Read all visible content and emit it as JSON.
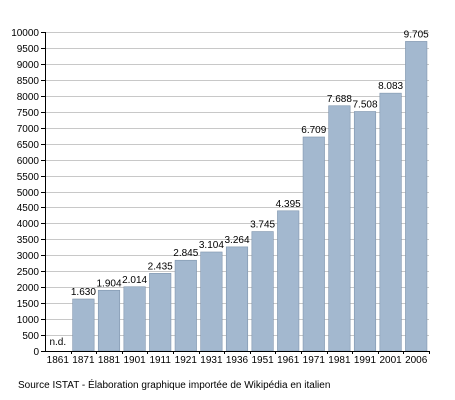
{
  "chart_data": {
    "type": "bar",
    "categories": [
      "1861",
      "1871",
      "1881",
      "1901",
      "1911",
      "1921",
      "1931",
      "1936",
      "1951",
      "1961",
      "1971",
      "1981",
      "1991",
      "2001",
      "2006"
    ],
    "values": [
      null,
      1630,
      1904,
      2014,
      2435,
      2845,
      3104,
      3264,
      3745,
      4395,
      6709,
      7688,
      7508,
      8083,
      9705
    ],
    "data_labels": [
      "n.d.",
      "1.630",
      "1.904",
      "2.014",
      "2.435",
      "2.845",
      "3.104",
      "3.264",
      "3.745",
      "4.395",
      "6.709",
      "7.688",
      "7.508",
      "8.083",
      "9.705"
    ],
    "ylim": [
      0,
      10000
    ],
    "yticks": [
      0,
      500,
      1000,
      1500,
      2000,
      2500,
      3000,
      3500,
      4000,
      4500,
      5000,
      5500,
      6000,
      6500,
      7000,
      7500,
      8000,
      8500,
      9000,
      9500,
      10000
    ],
    "grid": true,
    "bar_color": "#a3b8cf",
    "bar_edge_color": "#7f95ad"
  },
  "source_note": "Source ISTAT - Élaboration graphique importée de Wikipédia en italien"
}
